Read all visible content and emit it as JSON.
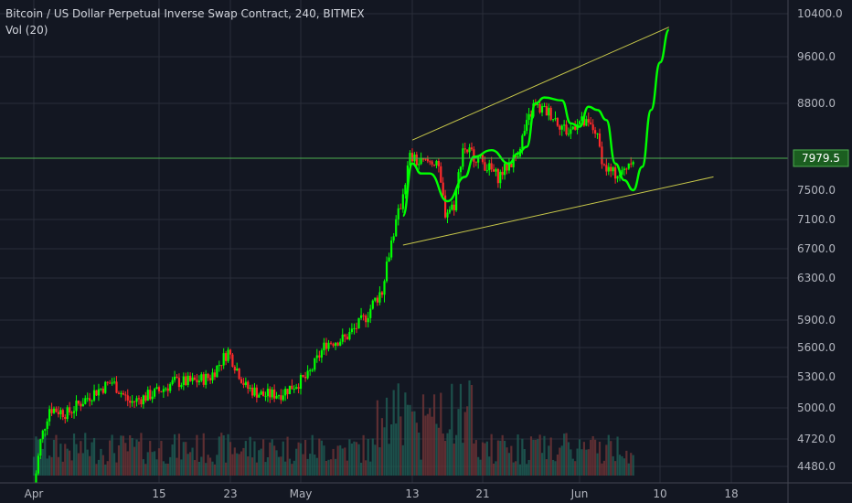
{
  "chart_data": {
    "type": "candlestick",
    "title": "Bitcoin / US Dollar Perpetual Inverse Swap Contract, 240, BITMEX",
    "indicator": "Vol (20)",
    "x_ticks": [
      "Apr",
      "15",
      "23",
      "May",
      "13",
      "21",
      "Jun",
      "10",
      "18"
    ],
    "y_ticks": [
      "10400.0",
      "9600.0",
      "8800.0",
      "7500.0",
      "7100.0",
      "6700.0",
      "6300.0",
      "5900.0",
      "5600.0",
      "5300.0",
      "5000.0",
      "4720.0",
      "4480.0"
    ],
    "current_price": "7979.5",
    "colors": {
      "background": "#131722",
      "up": "#00ff00",
      "down": "#ff2a2a",
      "price_line": "#4caf50",
      "channel": "#c8c84a",
      "projection": "#00ff00"
    },
    "price_path": [
      [
        "2019-04-01",
        4150
      ],
      [
        "2019-04-02",
        4700
      ],
      [
        "2019-04-03",
        5000
      ],
      [
        "2019-04-05",
        4950
      ],
      [
        "2019-04-08",
        5150
      ],
      [
        "2019-04-10",
        5250
      ],
      [
        "2019-04-12",
        5050
      ],
      [
        "2019-04-15",
        5150
      ],
      [
        "2019-04-17",
        5250
      ],
      [
        "2019-04-19",
        5250
      ],
      [
        "2019-04-21",
        5300
      ],
      [
        "2019-04-23",
        5560
      ],
      [
        "2019-04-25",
        5200
      ],
      [
        "2019-04-27",
        5120
      ],
      [
        "2019-04-29",
        5140
      ],
      [
        "2019-05-02",
        5300
      ],
      [
        "2019-05-04",
        5650
      ],
      [
        "2019-05-06",
        5700
      ],
      [
        "2019-05-08",
        5900
      ],
      [
        "2019-05-10",
        6200
      ],
      [
        "2019-05-11",
        6800
      ],
      [
        "2019-05-12",
        7300
      ],
      [
        "2019-05-13",
        8000
      ],
      [
        "2019-05-14",
        7900
      ],
      [
        "2019-05-16",
        7950
      ],
      [
        "2019-05-17",
        7200
      ],
      [
        "2019-05-18",
        7300
      ],
      [
        "2019-05-19",
        8150
      ],
      [
        "2019-05-21",
        7950
      ],
      [
        "2019-05-23",
        7700
      ],
      [
        "2019-05-25",
        8000
      ],
      [
        "2019-05-27",
        8750
      ],
      [
        "2019-05-29",
        8650
      ],
      [
        "2019-05-31",
        8350
      ],
      [
        "2019-06-01",
        8550
      ],
      [
        "2019-06-03",
        8400
      ],
      [
        "2019-06-04",
        7850
      ],
      [
        "2019-06-05",
        7750
      ],
      [
        "2019-06-06",
        7750
      ],
      [
        "2019-06-07",
        7980
      ]
    ],
    "volume_bars": 220,
    "channel": {
      "upper": [
        [
          "2019-05-13",
          8250
        ],
        [
          "2019-06-11",
          10150
        ]
      ],
      "lower": [
        [
          "2019-05-12",
          6750
        ],
        [
          "2019-06-16",
          7700
        ]
      ]
    },
    "projection_curve": [
      [
        "2019-05-12",
        7150
      ],
      [
        "2019-05-13",
        7900
      ],
      [
        "2019-05-14",
        7750
      ],
      [
        "2019-05-15",
        7750
      ],
      [
        "2019-05-17",
        7350
      ],
      [
        "2019-05-19",
        7700
      ],
      [
        "2019-05-20",
        8000
      ],
      [
        "2019-05-22",
        8100
      ],
      [
        "2019-05-24",
        7900
      ],
      [
        "2019-05-25",
        8050
      ],
      [
        "2019-05-26",
        8150
      ],
      [
        "2019-05-27",
        8800
      ],
      [
        "2019-05-28",
        8900
      ],
      [
        "2019-05-30",
        8850
      ],
      [
        "2019-05-31",
        8500
      ],
      [
        "2019-06-01",
        8450
      ],
      [
        "2019-06-02",
        8750
      ],
      [
        "2019-06-03",
        8700
      ],
      [
        "2019-06-04",
        8550
      ],
      [
        "2019-06-05",
        7900
      ],
      [
        "2019-06-06",
        7650
      ],
      [
        "2019-06-07",
        7500
      ],
      [
        "2019-06-08",
        7850
      ],
      [
        "2019-06-09",
        8700
      ],
      [
        "2019-06-10",
        9500
      ],
      [
        "2019-06-11",
        10100
      ]
    ]
  }
}
